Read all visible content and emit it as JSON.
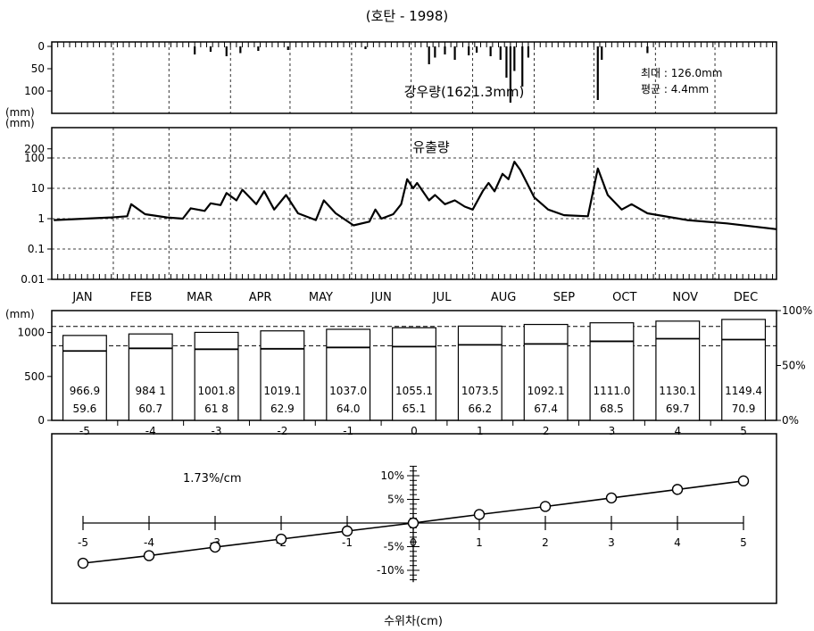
{
  "title": "(호탄 - 1998)",
  "chart_data": [
    {
      "type": "bar",
      "name": "rainfall",
      "label": "강우량(1621.3mm)",
      "stats": [
        "최대 : 126.0mm",
        "평균 : 4.4mm"
      ],
      "ylabel": "(mm)",
      "y_ticks": [
        "0",
        "50",
        "100"
      ],
      "ylim": [
        150,
        0
      ],
      "y_inverted": true,
      "events": [
        {
          "day": 72,
          "value": 18
        },
        {
          "day": 80,
          "value": 12
        },
        {
          "day": 88,
          "value": 22
        },
        {
          "day": 95,
          "value": 15
        },
        {
          "day": 104,
          "value": 10
        },
        {
          "day": 119,
          "value": 8
        },
        {
          "day": 158,
          "value": 6
        },
        {
          "day": 190,
          "value": 40
        },
        {
          "day": 193,
          "value": 25
        },
        {
          "day": 198,
          "value": 18
        },
        {
          "day": 203,
          "value": 30
        },
        {
          "day": 210,
          "value": 20
        },
        {
          "day": 214,
          "value": 14
        },
        {
          "day": 221,
          "value": 22
        },
        {
          "day": 226,
          "value": 30
        },
        {
          "day": 229,
          "value": 70
        },
        {
          "day": 231,
          "value": 126
        },
        {
          "day": 233,
          "value": 55
        },
        {
          "day": 237,
          "value": 90
        },
        {
          "day": 240,
          "value": 25
        },
        {
          "day": 275,
          "value": 120
        },
        {
          "day": 277,
          "value": 30
        },
        {
          "day": 300,
          "value": 15
        }
      ]
    },
    {
      "type": "line",
      "name": "runoff",
      "label": "유출량",
      "ylabel": "(mm)",
      "y_scale": "log",
      "y_ticks": [
        "200",
        "100",
        "10",
        "1",
        "0.1",
        "0.01"
      ],
      "ylim": [
        0.01,
        1000
      ],
      "months": [
        "JAN",
        "FEB",
        "MAR",
        "APR",
        "MAY",
        "JUN",
        "JUL",
        "AUG",
        "SEP",
        "OCT",
        "NOV",
        "DEC"
      ],
      "points": [
        {
          "day": 1,
          "value": 0.9
        },
        {
          "day": 30,
          "value": 1.1
        },
        {
          "day": 38,
          "value": 1.2
        },
        {
          "day": 40,
          "value": 3
        },
        {
          "day": 47,
          "value": 1.4
        },
        {
          "day": 58,
          "value": 1.1
        },
        {
          "day": 66,
          "value": 1.0
        },
        {
          "day": 70,
          "value": 2.2
        },
        {
          "day": 77,
          "value": 1.8
        },
        {
          "day": 80,
          "value": 3.2
        },
        {
          "day": 85,
          "value": 2.8
        },
        {
          "day": 88,
          "value": 7
        },
        {
          "day": 93,
          "value": 4
        },
        {
          "day": 96,
          "value": 9
        },
        {
          "day": 103,
          "value": 3
        },
        {
          "day": 107,
          "value": 8
        },
        {
          "day": 112,
          "value": 2
        },
        {
          "day": 118,
          "value": 6
        },
        {
          "day": 124,
          "value": 1.5
        },
        {
          "day": 133,
          "value": 0.9
        },
        {
          "day": 137,
          "value": 4
        },
        {
          "day": 143,
          "value": 1.5
        },
        {
          "day": 152,
          "value": 0.6
        },
        {
          "day": 160,
          "value": 0.8
        },
        {
          "day": 163,
          "value": 2
        },
        {
          "day": 166,
          "value": 1
        },
        {
          "day": 172,
          "value": 1.4
        },
        {
          "day": 176,
          "value": 3
        },
        {
          "day": 179,
          "value": 20
        },
        {
          "day": 182,
          "value": 10
        },
        {
          "day": 184,
          "value": 15
        },
        {
          "day": 190,
          "value": 4
        },
        {
          "day": 193,
          "value": 6
        },
        {
          "day": 198,
          "value": 3
        },
        {
          "day": 203,
          "value": 4
        },
        {
          "day": 208,
          "value": 2.5
        },
        {
          "day": 212,
          "value": 2
        },
        {
          "day": 217,
          "value": 8
        },
        {
          "day": 220,
          "value": 15
        },
        {
          "day": 223,
          "value": 8
        },
        {
          "day": 227,
          "value": 30
        },
        {
          "day": 230,
          "value": 20
        },
        {
          "day": 233,
          "value": 75
        },
        {
          "day": 236,
          "value": 40
        },
        {
          "day": 243,
          "value": 5
        },
        {
          "day": 250,
          "value": 2
        },
        {
          "day": 258,
          "value": 1.3
        },
        {
          "day": 270,
          "value": 1.2
        },
        {
          "day": 275,
          "value": 45
        },
        {
          "day": 280,
          "value": 6
        },
        {
          "day": 287,
          "value": 2
        },
        {
          "day": 292,
          "value": 3
        },
        {
          "day": 300,
          "value": 1.5
        },
        {
          "day": 320,
          "value": 0.9
        },
        {
          "day": 340,
          "value": 0.7
        },
        {
          "day": 365,
          "value": 0.45
        }
      ]
    },
    {
      "type": "bar",
      "name": "water-level-difference",
      "ylabel": "(mm)",
      "y_ticks": [
        "1000",
        "500",
        "0"
      ],
      "ylim": [
        0,
        1250
      ],
      "y2_ticks": [
        "100%",
        "50%",
        "0%"
      ],
      "categories": [
        "-5",
        "-4",
        "-3",
        "-2",
        "-1",
        "0",
        "1",
        "2",
        "3",
        "4",
        "5"
      ],
      "values": [
        966.9,
        984.1,
        1001.8,
        1019.1,
        1037.0,
        1055.1,
        1073.5,
        1092.1,
        1111.0,
        1130.1,
        1149.4
      ],
      "value_labels": [
        "966.9",
        "984 1",
        "1001.8",
        "1019.1",
        "1037.0",
        "1055.1",
        "1073.5",
        "1092.1",
        "1111.0",
        "1130.1",
        "1149.4"
      ],
      "percent_labels": [
        "59.6",
        "60.7",
        "61 8",
        "62.9",
        "64.0",
        "65.1",
        "66.2",
        "67.4",
        "68.5",
        "69.7",
        "70.9"
      ],
      "inner_values": [
        790,
        820,
        810,
        815,
        830,
        840,
        860,
        870,
        900,
        930,
        920
      ],
      "reference_lines": [
        1070,
        850
      ]
    },
    {
      "type": "line",
      "name": "sensitivity",
      "annotation": "1.73%/cm",
      "xlabel": "수위차(cm)",
      "x": [
        -5,
        -4,
        -3,
        -2,
        -1,
        0,
        1,
        2,
        3,
        4,
        5
      ],
      "y": [
        -8.5,
        -6.9,
        -5.1,
        -3.4,
        -1.7,
        0,
        1.8,
        3.5,
        5.3,
        7.1,
        8.9
      ],
      "x_ticks": [
        "-5",
        "-4",
        "-3",
        "-2",
        "-1",
        "0",
        "1",
        "2",
        "3",
        "4",
        "5"
      ],
      "y_ticks": [
        "10%",
        "5%",
        "-5%",
        "-10%"
      ],
      "xlim": [
        -5,
        5
      ],
      "ylim": [
        -12,
        12
      ]
    }
  ]
}
